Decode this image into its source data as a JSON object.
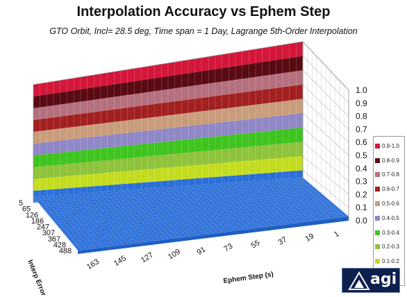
{
  "chart_data": {
    "type": "surface",
    "title": "Interpolation Accuracy vs Ephem Step",
    "subtitle": "GTO Orbit, Incl= 28.5 deg, Time span = 1 Day, Lagrange 5th-Order Interpolation",
    "xlabel": "Ephem Step (s)",
    "ylabel": "Interp Error (m)",
    "x_ticks": [
      "163",
      "145",
      "127",
      "109",
      "91",
      "73",
      "55",
      "37",
      "19",
      "1"
    ],
    "y_ticks": [
      "5",
      "65",
      "126",
      "186",
      "247",
      "307",
      "367",
      "428",
      "488"
    ],
    "z_ticks": [
      "0.0",
      "0.1",
      "0.2",
      "0.3",
      "0.4",
      "0.5",
      "0.6",
      "0.7",
      "0.8",
      "0.9",
      "1.0"
    ],
    "zlim": [
      0,
      1
    ],
    "surface_value": 0.05,
    "legend_position": "right",
    "legend": [
      {
        "label": "0.9-1.0",
        "color": "#d4163a"
      },
      {
        "label": "0.8-0.9",
        "color": "#5a0a12"
      },
      {
        "label": "0.7-0.8",
        "color": "#b5707e"
      },
      {
        "label": "0.6-0.7",
        "color": "#a32020"
      },
      {
        "label": "0.5-0.6",
        "color": "#c99d7c"
      },
      {
        "label": "0.4-0.5",
        "color": "#8f87c6"
      },
      {
        "label": "0.3-0.4",
        "color": "#3fc41f"
      },
      {
        "label": "0.2-0.3",
        "color": "#8fc33c"
      },
      {
        "label": "0.1-0.2",
        "color": "#c4dc20"
      },
      {
        "label": "0.0-0.1",
        "color": "#2b6fd8"
      }
    ]
  },
  "logo": {
    "text": "agi"
  }
}
